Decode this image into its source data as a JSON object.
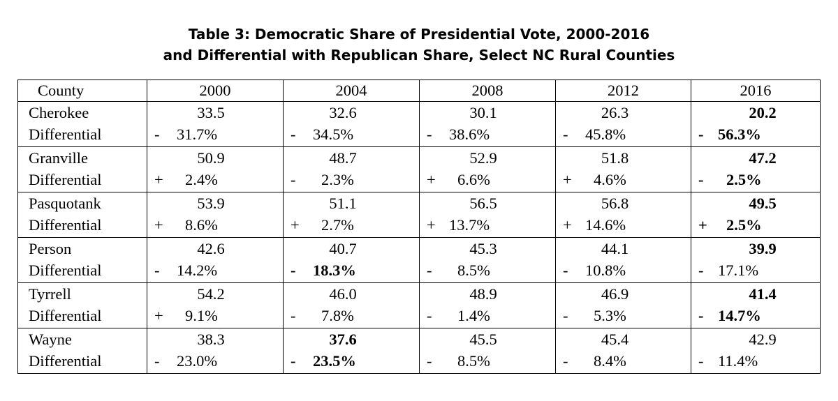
{
  "title": {
    "line1": "Table 3: Democratic Share of Presidential Vote, 2000-2016",
    "line2": "and Differential with Republican Share, Select NC Rural Counties"
  },
  "headers": [
    "County",
    "2000",
    "2004",
    "2008",
    "2012",
    "2016"
  ],
  "rows": [
    {
      "county": "Cherokee",
      "diff_label": "Differential",
      "cells": [
        {
          "value": "33.5",
          "sign": "-",
          "pct": "31.7%",
          "bold_value": false,
          "bold_diff": false
        },
        {
          "value": "32.6",
          "sign": "-",
          "pct": "34.5%",
          "bold_value": false,
          "bold_diff": false
        },
        {
          "value": "30.1",
          "sign": "-",
          "pct": "38.6%",
          "bold_value": false,
          "bold_diff": false
        },
        {
          "value": "26.3",
          "sign": "-",
          "pct": "45.8%",
          "bold_value": false,
          "bold_diff": false
        },
        {
          "value": "20.2",
          "sign": "-",
          "pct": "56.3%",
          "bold_value": true,
          "bold_diff": true
        }
      ]
    },
    {
      "county": "Granville",
      "diff_label": "Differential",
      "cells": [
        {
          "value": "50.9",
          "sign": "+",
          "pct": "2.4%",
          "bold_value": false,
          "bold_diff": false
        },
        {
          "value": "48.7",
          "sign": "-",
          "pct": "2.3%",
          "bold_value": false,
          "bold_diff": false
        },
        {
          "value": "52.9",
          "sign": "+",
          "pct": "6.6%",
          "bold_value": false,
          "bold_diff": false
        },
        {
          "value": "51.8",
          "sign": "+",
          "pct": "4.6%",
          "bold_value": false,
          "bold_diff": false
        },
        {
          "value": "47.2",
          "sign": "-",
          "pct": "2.5%",
          "bold_value": true,
          "bold_diff": true
        }
      ]
    },
    {
      "county": "Pasquotank",
      "diff_label": "Differential",
      "cells": [
        {
          "value": "53.9",
          "sign": "+",
          "pct": "8.6%",
          "bold_value": false,
          "bold_diff": false
        },
        {
          "value": "51.1",
          "sign": "+",
          "pct": "2.7%",
          "bold_value": false,
          "bold_diff": false
        },
        {
          "value": "56.5",
          "sign": "+",
          "pct": "13.7%",
          "bold_value": false,
          "bold_diff": false
        },
        {
          "value": "56.8",
          "sign": "+",
          "pct": "14.6%",
          "bold_value": false,
          "bold_diff": false
        },
        {
          "value": "49.5",
          "sign": "+",
          "pct": "2.5%",
          "bold_value": true,
          "bold_diff": true
        }
      ]
    },
    {
      "county": "Person",
      "diff_label": "Differential",
      "cells": [
        {
          "value": "42.6",
          "sign": "-",
          "pct": "14.2%",
          "bold_value": false,
          "bold_diff": false
        },
        {
          "value": "40.7",
          "sign": "-",
          "pct": "18.3%",
          "bold_value": false,
          "bold_diff": true
        },
        {
          "value": "45.3",
          "sign": "-",
          "pct": "8.5%",
          "bold_value": false,
          "bold_diff": false
        },
        {
          "value": "44.1",
          "sign": "-",
          "pct": "10.8%",
          "bold_value": false,
          "bold_diff": false
        },
        {
          "value": "39.9",
          "sign": "-",
          "pct": "17.1%",
          "bold_value": true,
          "bold_diff": false
        }
      ]
    },
    {
      "county": "Tyrrell",
      "diff_label": "Differential",
      "cells": [
        {
          "value": "54.2",
          "sign": "+",
          "pct": "9.1%",
          "bold_value": false,
          "bold_diff": false
        },
        {
          "value": "46.0",
          "sign": "-",
          "pct": "7.8%",
          "bold_value": false,
          "bold_diff": false
        },
        {
          "value": "48.9",
          "sign": "-",
          "pct": "1.4%",
          "bold_value": false,
          "bold_diff": false
        },
        {
          "value": "46.9",
          "sign": "-",
          "pct": "5.3%",
          "bold_value": false,
          "bold_diff": false
        },
        {
          "value": "41.4",
          "sign": "-",
          "pct": "14.7%",
          "bold_value": true,
          "bold_diff": true
        }
      ]
    },
    {
      "county": "Wayne",
      "diff_label": "Differential",
      "cells": [
        {
          "value": "38.3",
          "sign": "-",
          "pct": "23.0%",
          "bold_value": false,
          "bold_diff": false
        },
        {
          "value": "37.6",
          "sign": "-",
          "pct": "23.5%",
          "bold_value": true,
          "bold_diff": true
        },
        {
          "value": "45.5",
          "sign": "-",
          "pct": "8.5%",
          "bold_value": false,
          "bold_diff": false
        },
        {
          "value": "45.4",
          "sign": "-",
          "pct": "8.4%",
          "bold_value": false,
          "bold_diff": false
        },
        {
          "value": "42.9",
          "sign": "-",
          "pct": "11.4%",
          "bold_value": false,
          "bold_diff": false
        }
      ]
    }
  ]
}
